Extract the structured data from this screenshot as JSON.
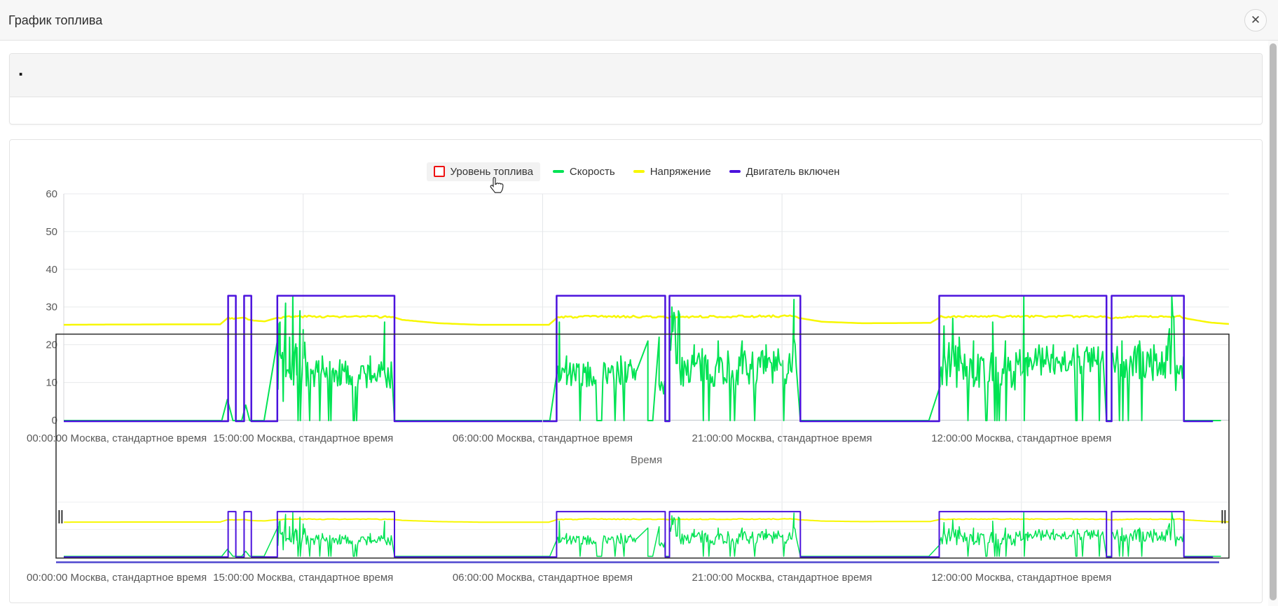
{
  "window": {
    "title": "График топлива",
    "close_icon": "✕"
  },
  "filter_panel": {
    "placeholder_text": "."
  },
  "legend": {
    "items": [
      {
        "label": "Уровень топлива",
        "marker": "square-outline",
        "color": "#ee1111",
        "active": false,
        "highlighted": true
      },
      {
        "label": "Скорость",
        "marker": "dash",
        "color": "#00e353",
        "active": true,
        "highlighted": false
      },
      {
        "label": "Напряжение",
        "marker": "dash",
        "color": "#f7f700",
        "active": true,
        "highlighted": false
      },
      {
        "label": "Двигатель включен",
        "marker": "dash",
        "color": "#4b12dd",
        "active": true,
        "highlighted": false
      }
    ]
  },
  "chart_data": {
    "type": "line",
    "x_axis": {
      "title": "Время",
      "unit": "hours-from-start",
      "range_hours": [
        0,
        73
      ],
      "tick_hours": [
        0,
        15,
        30,
        45,
        60
      ],
      "tick_labels": [
        "00:00:00 Москва, стандартное время",
        "15:00:00 Москва, стандартное время",
        "06:00:00 Москва, стандартное время",
        "21:00:00 Москва, стандартное время",
        "12:00:00 Москва, стандартное время"
      ]
    },
    "y_axis": {
      "range": [
        0,
        60
      ],
      "ticks": [
        0,
        10,
        20,
        30,
        40,
        50,
        60
      ],
      "grid": true
    },
    "series": [
      {
        "name": "Уровень топлива",
        "color": "#ee1111",
        "visible": false
      },
      {
        "name": "Скорость",
        "color": "#00e353",
        "visible": true,
        "pattern": [
          {
            "type": "zero",
            "t0": 0,
            "t1": 9.9
          },
          {
            "type": "tri",
            "t0": 9.9,
            "t1": 10.6,
            "peak": 5.5
          },
          {
            "type": "tri",
            "t0": 11.15,
            "t1": 11.65,
            "peak": 4
          },
          {
            "type": "zero",
            "t0": 11.65,
            "t1": 12.55
          },
          {
            "type": "ramp",
            "t0": 12.55,
            "t1": 13.42,
            "v1": 22
          },
          {
            "type": "noisy",
            "t0": 13.42,
            "t1": 15.2,
            "base": 17,
            "amp": 9,
            "dips": 0.05,
            "spikes": [
              [
                13.55,
                26
              ],
              [
                13.75,
                5
              ],
              [
                13.9,
                31
              ],
              [
                14.15,
                22
              ],
              [
                14.35,
                33
              ],
              [
                14.6,
                12
              ],
              [
                14.8,
                29
              ],
              [
                15.0,
                24
              ]
            ]
          },
          {
            "type": "noisy",
            "t0": 15.2,
            "t1": 20.55,
            "base": 12,
            "amp": 4,
            "dips": 0.1,
            "spikes": [
              [
                16.2,
                17
              ],
              [
                17.3,
                16
              ],
              [
                19.2,
                17
              ],
              [
                20.1,
                26
              ]
            ]
          },
          {
            "type": "ramp0",
            "t0": 20.55,
            "t1": 20.72
          },
          {
            "type": "zero",
            "t0": 20.72,
            "t1": 30.45
          },
          {
            "type": "ramp",
            "t0": 30.45,
            "t1": 30.95,
            "v1": 14
          },
          {
            "type": "noisy",
            "t0": 30.95,
            "t1": 33.4,
            "base": 12,
            "amp": 3.5,
            "dips": 0.07,
            "spikes": [
              [
                31.05,
                26
              ],
              [
                31.5,
                17
              ]
            ]
          },
          {
            "type": "zero",
            "t0": 33.4,
            "t1": 33.7
          },
          {
            "type": "noisy",
            "t0": 33.7,
            "t1": 35.9,
            "base": 12.5,
            "amp": 3.5,
            "dips": 0.07,
            "spikes": [
              [
                34.9,
                17
              ],
              [
                35.5,
                16
              ]
            ]
          },
          {
            "type": "ramp",
            "t0": 35.9,
            "t1": 36.6,
            "v1": 21
          },
          {
            "type": "zero",
            "t0": 36.6,
            "t1": 36.9
          },
          {
            "type": "ramp",
            "t0": 36.9,
            "t1": 37.3,
            "v1": 22
          },
          {
            "type": "noisy",
            "t0": 37.3,
            "t1": 37.68,
            "base": 10,
            "amp": 4,
            "dips": 0.05,
            "spikes": []
          },
          {
            "type": "zero",
            "t0": 37.68,
            "t1": 37.95
          },
          {
            "type": "noisy",
            "t0": 37.95,
            "t1": 38.6,
            "base": 20,
            "amp": 9,
            "dips": 0.03,
            "spikes": [
              [
                38.1,
                30
              ],
              [
                38.3,
                27
              ]
            ]
          },
          {
            "type": "noisy",
            "t0": 38.6,
            "t1": 45.4,
            "base": 14,
            "amp": 5,
            "dips": 0.12,
            "spikes": [
              [
                39.5,
                20
              ],
              [
                41.0,
                21
              ],
              [
                42.5,
                21
              ],
              [
                44.0,
                20
              ]
            ]
          },
          {
            "type": "noisy",
            "t0": 45.4,
            "t1": 45.95,
            "base": 18,
            "amp": 6,
            "dips": 0.02,
            "spikes": [
              [
                45.75,
                32
              ]
            ]
          },
          {
            "type": "ramp0",
            "t0": 45.95,
            "t1": 46.15
          },
          {
            "type": "zero",
            "t0": 46.15,
            "t1": 54.2
          },
          {
            "type": "ramp",
            "t0": 54.2,
            "t1": 54.9,
            "v1": 9
          },
          {
            "type": "noisy",
            "t0": 54.9,
            "t1": 56.3,
            "base": 15,
            "amp": 7,
            "dips": 0.05,
            "spikes": [
              [
                55.15,
                25
              ],
              [
                55.7,
                27
              ],
              [
                56.1,
                22
              ]
            ]
          },
          {
            "type": "noisy",
            "t0": 56.3,
            "t1": 59.9,
            "base": 13,
            "amp": 5,
            "dips": 0.1,
            "spikes": [
              [
                57.0,
                21
              ],
              [
                58.2,
                26
              ],
              [
                59.0,
                21
              ]
            ]
          },
          {
            "type": "noisy",
            "t0": 59.9,
            "t1": 60.4,
            "base": 16,
            "amp": 5,
            "dips": 0.02,
            "spikes": [
              [
                60.15,
                33
              ]
            ]
          },
          {
            "type": "noisy",
            "t0": 60.4,
            "t1": 65.1,
            "base": 16,
            "amp": 4,
            "dips": 0.08,
            "spikes": [
              [
                62.0,
                20
              ],
              [
                63.5,
                20
              ]
            ]
          },
          {
            "type": "ramp0",
            "t0": 65.1,
            "t1": 65.33
          },
          {
            "type": "zero",
            "t0": 65.33,
            "t1": 65.65
          },
          {
            "type": "noisy",
            "t0": 65.65,
            "t1": 69.2,
            "base": 15,
            "amp": 5,
            "dips": 0.1,
            "spikes": [
              [
                66.3,
                21
              ],
              [
                67.4,
                21
              ],
              [
                68.3,
                20
              ]
            ]
          },
          {
            "type": "noisy",
            "t0": 69.2,
            "t1": 69.6,
            "base": 20,
            "amp": 8,
            "dips": 0.02,
            "spikes": [
              [
                69.42,
                33
              ]
            ]
          },
          {
            "type": "noisy",
            "t0": 69.6,
            "t1": 70.18,
            "base": 12,
            "amp": 5,
            "dips": 0.05,
            "spikes": []
          },
          {
            "type": "zero",
            "t0": 70.18,
            "t1": 72.5
          }
        ]
      },
      {
        "name": "Напряжение",
        "color": "#f7f700",
        "visible": true,
        "keypoints": [
          [
            0,
            25.3
          ],
          [
            6,
            25.4
          ],
          [
            9.8,
            25.4
          ],
          [
            10.3,
            27.2
          ],
          [
            10.8,
            27.0
          ],
          [
            11.3,
            27.2
          ],
          [
            11.9,
            26.4
          ],
          [
            12.6,
            26.2
          ],
          [
            13.4,
            27.2
          ],
          [
            14.5,
            27.5
          ],
          [
            20.6,
            27.4
          ],
          [
            21.2,
            26.6
          ],
          [
            23.5,
            25.7
          ],
          [
            26,
            25.3
          ],
          [
            30.4,
            25.3
          ],
          [
            30.95,
            27.3
          ],
          [
            34,
            27.5
          ],
          [
            37.6,
            27.4
          ],
          [
            37.9,
            27.1
          ],
          [
            38.2,
            27.4
          ],
          [
            45.5,
            27.6
          ],
          [
            46.2,
            27.0
          ],
          [
            47.5,
            26.1
          ],
          [
            50,
            25.7
          ],
          [
            54.3,
            25.8
          ],
          [
            54.95,
            27.4
          ],
          [
            58,
            27.5
          ],
          [
            65.2,
            27.5
          ],
          [
            65.6,
            27.0
          ],
          [
            65.8,
            27.3
          ],
          [
            69.9,
            27.5
          ],
          [
            70.4,
            26.9
          ],
          [
            71.8,
            25.9
          ],
          [
            73,
            25.5
          ]
        ]
      },
      {
        "name": "Двигатель включен",
        "color": "#4b12dd",
        "visible": true,
        "value_on": 33,
        "value_off": 0,
        "on_intervals_hours": [
          [
            10.3,
            10.78
          ],
          [
            11.3,
            11.75
          ],
          [
            13.38,
            20.72
          ],
          [
            30.88,
            37.68
          ],
          [
            37.95,
            46.15
          ],
          [
            54.85,
            65.33
          ],
          [
            65.65,
            70.18
          ]
        ]
      }
    ],
    "navigator": {
      "present": true,
      "handles": [
        "left",
        "right"
      ],
      "selection": "full-range"
    }
  },
  "colors": {
    "grid": "#e8eaec",
    "grid_vertical": "#e4e6e9",
    "axis_line": "#c9cdd1",
    "tick_text": "#595959",
    "axis_title_text": "#666666",
    "nav_border": "#2b2b2b",
    "nav_bottom_line": "#4f46cf",
    "header_bg": "#f7f7f7",
    "panel_border": "#e3e3e3",
    "scroll_thumb": "#bcbcbc"
  }
}
